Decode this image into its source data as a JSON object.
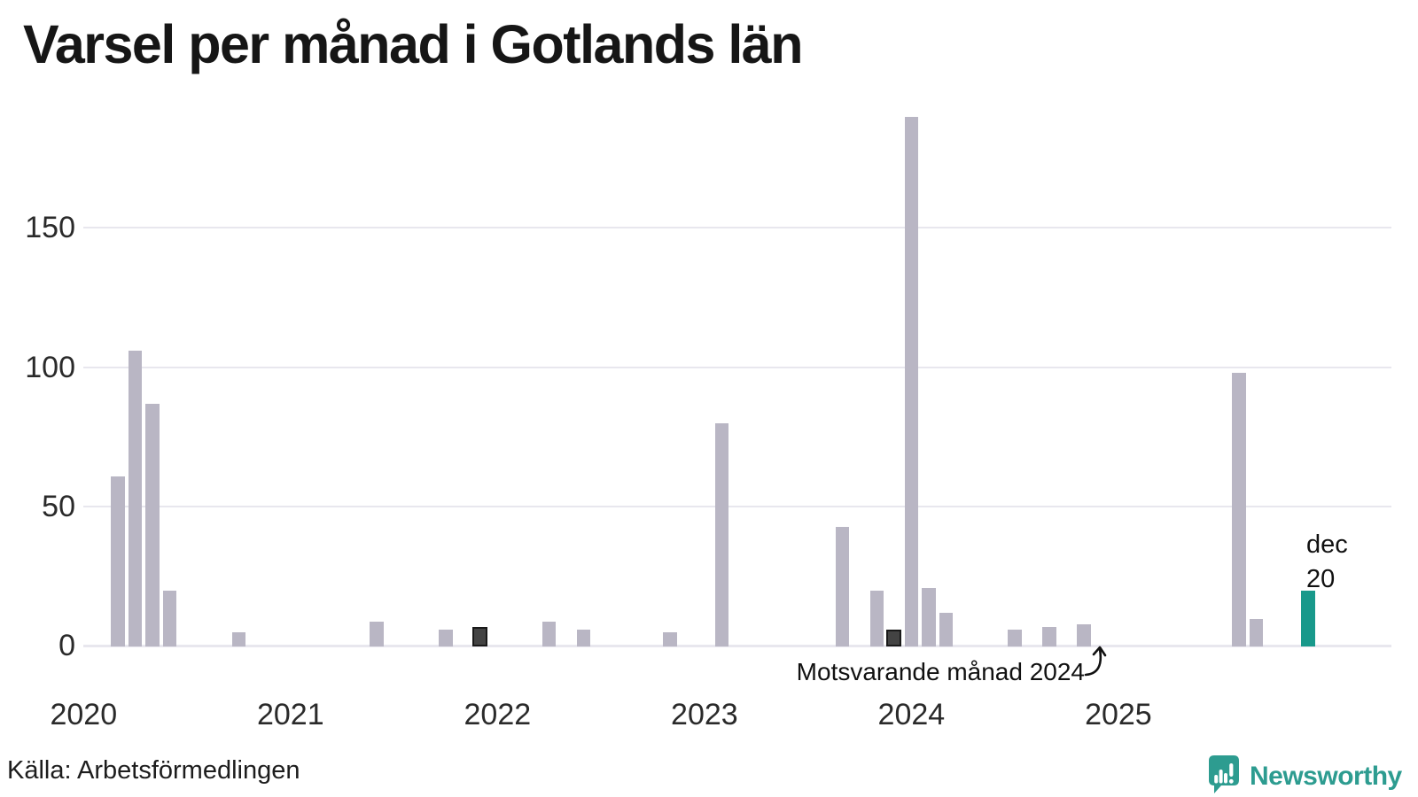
{
  "title": "Varsel per månad i Gotlands län",
  "source": "Källa: Arbetsförmedlingen",
  "annotation": {
    "text": "Motsvarande månad 2024",
    "target_month": "2024-12",
    "target_value": 0
  },
  "current_label": {
    "month": "dec",
    "value": "20"
  },
  "logo": {
    "name": "Newsworthy"
  },
  "colors": {
    "bar": "#b9b6c4",
    "bar_highlight": "#434343",
    "bar_highlight_border": "#191919",
    "bar_current": "#18998b",
    "grid": "#e8e7ee",
    "brand_teal": "#2d9c90",
    "text": "#161616"
  },
  "chart_data": {
    "type": "bar",
    "title": "Varsel per månad i Gotlands län",
    "xlabel": "",
    "ylabel": "",
    "ylim": [
      0,
      195
    ],
    "yticks": [
      0,
      50,
      100,
      150
    ],
    "xticks": [
      "2020",
      "2021",
      "2022",
      "2023",
      "2024",
      "2025"
    ],
    "x_range": [
      "2020-01",
      "2025-12"
    ],
    "grid": "horizontal",
    "note": "Months not listed have value 0. Style highlight = same month as latest (dark); current = latest month (teal).",
    "points": [
      {
        "month": "2020-03",
        "value": 61,
        "style": "normal"
      },
      {
        "month": "2020-04",
        "value": 106,
        "style": "normal"
      },
      {
        "month": "2020-05",
        "value": 87,
        "style": "normal"
      },
      {
        "month": "2020-06",
        "value": 20,
        "style": "normal"
      },
      {
        "month": "2020-10",
        "value": 5,
        "style": "normal"
      },
      {
        "month": "2021-06",
        "value": 9,
        "style": "normal"
      },
      {
        "month": "2021-10",
        "value": 6,
        "style": "normal"
      },
      {
        "month": "2021-12",
        "value": 7,
        "style": "highlight"
      },
      {
        "month": "2022-04",
        "value": 9,
        "style": "normal"
      },
      {
        "month": "2022-06",
        "value": 6,
        "style": "normal"
      },
      {
        "month": "2022-11",
        "value": 5,
        "style": "normal"
      },
      {
        "month": "2023-02",
        "value": 80,
        "style": "normal"
      },
      {
        "month": "2023-09",
        "value": 43,
        "style": "normal"
      },
      {
        "month": "2023-11",
        "value": 20,
        "style": "normal"
      },
      {
        "month": "2023-12",
        "value": 6,
        "style": "highlight"
      },
      {
        "month": "2024-01",
        "value": 190,
        "style": "normal"
      },
      {
        "month": "2024-02",
        "value": 21,
        "style": "normal"
      },
      {
        "month": "2024-03",
        "value": 12,
        "style": "normal"
      },
      {
        "month": "2024-07",
        "value": 6,
        "style": "normal"
      },
      {
        "month": "2024-09",
        "value": 7,
        "style": "normal"
      },
      {
        "month": "2024-11",
        "value": 8,
        "style": "normal"
      },
      {
        "month": "2025-08",
        "value": 98,
        "style": "normal"
      },
      {
        "month": "2025-09",
        "value": 10,
        "style": "normal"
      },
      {
        "month": "2025-12",
        "value": 20,
        "style": "current"
      }
    ]
  }
}
